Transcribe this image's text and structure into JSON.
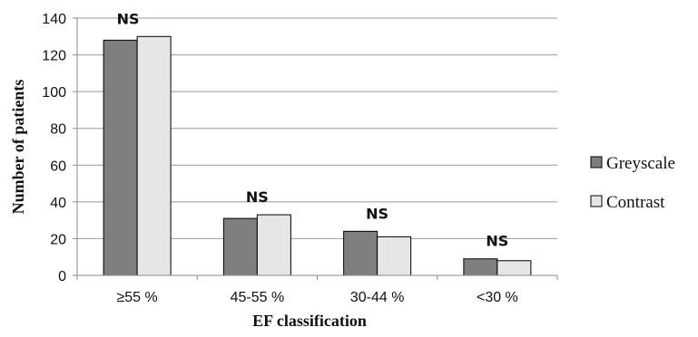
{
  "chart_data": {
    "type": "bar",
    "categories": [
      "≥55 %",
      "45-55 %",
      "30-44 %",
      "<30 %"
    ],
    "series": [
      {
        "name": "Greyscale",
        "values": [
          128,
          31,
          24,
          9
        ],
        "color": "#7f7f7f"
      },
      {
        "name": "Contrast",
        "values": [
          130,
          33,
          21,
          8
        ],
        "color": "#e6e6e6"
      }
    ],
    "annotations": [
      "NS",
      "NS",
      "NS",
      "NS"
    ],
    "xlabel": "EF classification",
    "ylabel": "Number of patients",
    "ylim": [
      0,
      140
    ],
    "yticks": [
      "0",
      "20",
      "40",
      "60",
      "80",
      "100",
      "120",
      "140"
    ],
    "grid": true,
    "legend_position": "right"
  }
}
